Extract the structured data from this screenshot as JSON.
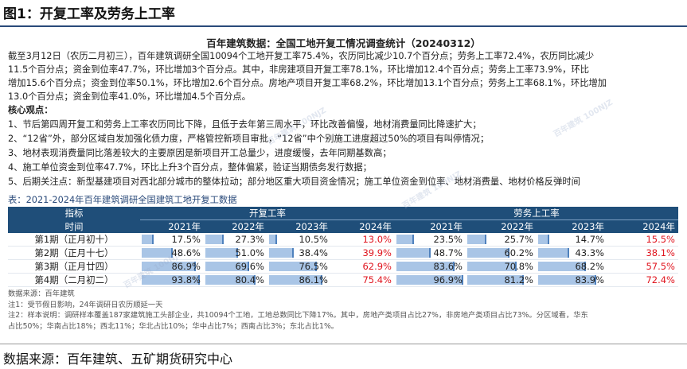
{
  "figure_title": "图1：开复工率及劳务上工率",
  "doc_title": "百年建筑数据：全国工地开复工情况调查统计（20240312）",
  "summary": [
    "截至3月12日（农历二月初三），百年建筑调研全国10094个工地开复工率75.4%，农历同比减少10.7个百分点；劳务上工率72.4%，农历同比减少",
    "11.5个百分点；资金到位率47.7%，环比增加3个百分点。其中，非房建项目开复工率78.1%，环比增加12.4个百分点；劳务上工率73.9%，环比",
    "增加15.6个百分点；资金到位率50.1%，环比增加2.6个百分点。房地产项目开复工率68.2%，环比增加13.1个百分点；劳务上工率68.1%，环比增加",
    "13.0个百分点；资金到位率41.0%，环比增加4.5个百分点。"
  ],
  "core_heading": "核心观点：",
  "points": [
    "1、节后第四周开复工和劳务上工率农历同比下降，且低于去年第三周水平，环比改善偏慢，地材消费量同比降速扩大；",
    "2、“12省”外，部分区域自发加强化债力度，严格管控新项目审批，“12省”中个别施工进度超过50%的项目有叫停情况；",
    "3、地材表现消费量同比落差较大的主要原因是新项目开工总量少，进度缓慢，去年同期基数高；",
    "4、施工单位资金到位率47.7%，环比上升3个百分点，整体偏紧，验证当期债务发行数据；",
    "5、后期关注点：新型基建项目对西北部分城市的整体拉动；部分地区重大项目资金情况；施工单位资金到位率、地材消费量、地材价格反弹时间"
  ],
  "table_caption": "表：2021-2024年百年建筑调研全国建筑工地开复工数据",
  "table": {
    "header_indicator": "指标",
    "header_time": "时间",
    "group1": "开复工率",
    "group2": "劳务上工率",
    "years": [
      "2021年",
      "2022年",
      "2023年",
      "2024年",
      "2021年",
      "2022年",
      "2023年",
      "2024年"
    ],
    "rows": [
      {
        "label": "第1期（正月初十）",
        "values": [
          "17.5%",
          "27.3%",
          "10.5%",
          "13.0%",
          "23.5%",
          "25.7%",
          "14.7%",
          "15.5%"
        ]
      },
      {
        "label": "第2期（正月十七）",
        "values": [
          "48.6%",
          "51.0%",
          "38.4%",
          "39.9%",
          "48.7%",
          "60.2%",
          "43.3%",
          "38.1%"
        ]
      },
      {
        "label": "第3期（正月廿四）",
        "values": [
          "86.9%",
          "69.6%",
          "76.5%",
          "62.9%",
          "83.6%",
          "70.8%",
          "68.2%",
          "57.5%"
        ]
      },
      {
        "label": "第4期（二月初二）",
        "values": [
          "93.8%",
          "80.4%",
          "86.1%",
          "75.4%",
          "96.9%",
          "81.2%",
          "83.9%",
          "72.4%"
        ]
      }
    ],
    "red_color": "#e0141e",
    "bar_color": "#a9c5e6"
  },
  "notes": [
    "数据来源：百年建筑",
    "注1：受节假日影响，24年调研日农历顺延一天",
    "注2：样本说明：调研样本覆盖187家建筑施工头部企业，共10094个工地，工地总数同比下降17%。其中，房地产类项目占比27%，非房地产类项目占比73%。分区域看，华东",
    "占比50%；华南占比18%；西北11%；华北占比10%；华中占比7%；西南占比3%；东北占比1%。"
  ],
  "watermark": "百年建筑 100NJZ",
  "source": "数据来源：百年建筑、五矿期货研究中心"
}
